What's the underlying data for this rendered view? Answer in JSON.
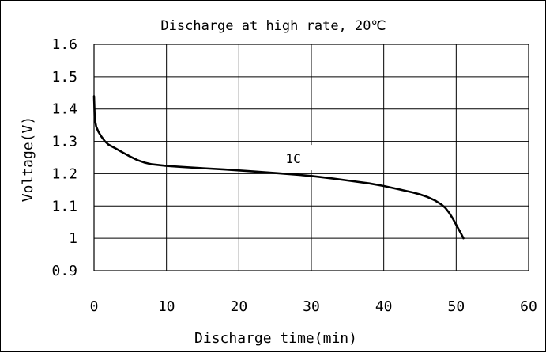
{
  "chart_data": {
    "type": "line",
    "title": "Discharge at high rate, 20℃",
    "xlabel": "Discharge time(min)",
    "ylabel": "Voltage(V)",
    "xlim": [
      0,
      60
    ],
    "ylim": [
      0.9,
      1.6
    ],
    "x_ticks": [
      "0",
      "10",
      "20",
      "30",
      "40",
      "50",
      "60"
    ],
    "y_ticks": [
      "0.9",
      "1",
      "1.1",
      "1.2",
      "1.3",
      "1.4",
      "1.5",
      "1.6"
    ],
    "x_tick_values": [
      0,
      10,
      20,
      30,
      40,
      50,
      60
    ],
    "y_tick_values": [
      0.9,
      1.0,
      1.1,
      1.2,
      1.3,
      1.4,
      1.5,
      1.6
    ],
    "grid": true,
    "annotation": "1C",
    "series": [
      {
        "name": "1C",
        "x": [
          0,
          0.1,
          0.3,
          0.6,
          1,
          1.5,
          2,
          3,
          4,
          5,
          6,
          7,
          8,
          10,
          12,
          15,
          18,
          20,
          22,
          25,
          28,
          30,
          33,
          35,
          38,
          40,
          42,
          44,
          45,
          46,
          47,
          48,
          48.5,
          49,
          49.5,
          50,
          50.5,
          51
        ],
        "y": [
          1.44,
          1.37,
          1.345,
          1.33,
          1.315,
          1.3,
          1.29,
          1.278,
          1.265,
          1.253,
          1.242,
          1.234,
          1.229,
          1.224,
          1.221,
          1.217,
          1.213,
          1.21,
          1.207,
          1.202,
          1.197,
          1.193,
          1.185,
          1.179,
          1.17,
          1.162,
          1.152,
          1.142,
          1.136,
          1.128,
          1.118,
          1.104,
          1.094,
          1.08,
          1.062,
          1.042,
          1.022,
          1.0
        ]
      }
    ]
  }
}
